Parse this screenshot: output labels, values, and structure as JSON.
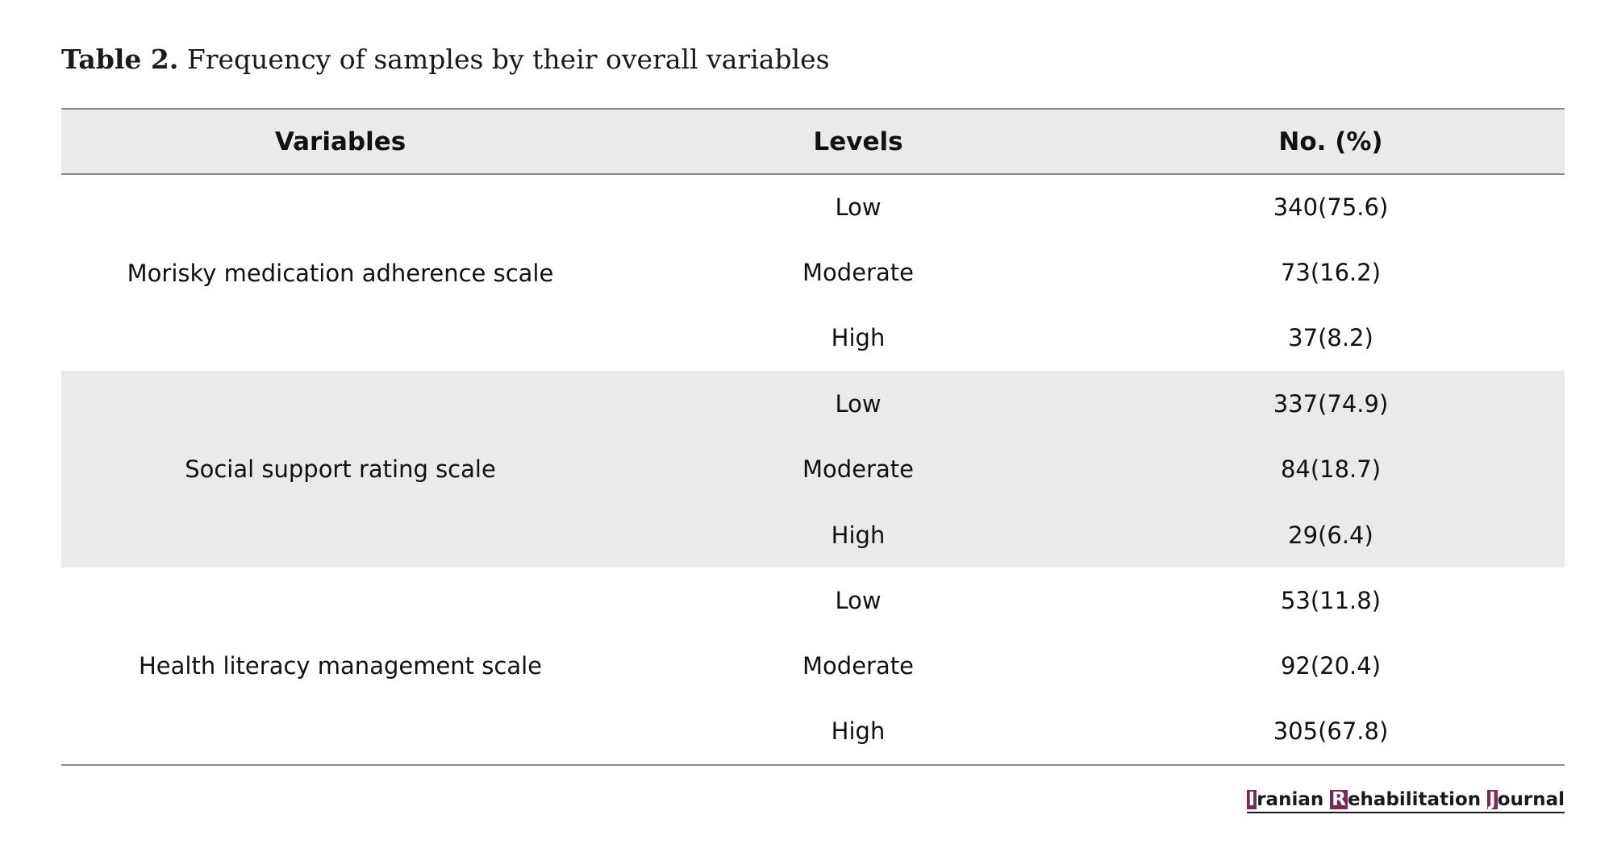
{
  "caption": {
    "label": "Table 2.",
    "text": "Frequency of samples by their overall variables"
  },
  "table": {
    "headers": [
      "Variables",
      "Levels",
      "No. (%)"
    ],
    "groups": [
      {
        "variable": "Morisky medication adherence scale",
        "rows": [
          {
            "level": "Low",
            "value": "340(75.6)"
          },
          {
            "level": "Moderate",
            "value": "73(16.2)"
          },
          {
            "level": "High",
            "value": "37(8.2)"
          }
        ]
      },
      {
        "variable": "Social support rating scale",
        "rows": [
          {
            "level": "Low",
            "value": "337(74.9)"
          },
          {
            "level": "Moderate",
            "value": "84(18.7)"
          },
          {
            "level": "High",
            "value": "29(6.4)"
          }
        ]
      },
      {
        "variable": "Health literacy management scale",
        "rows": [
          {
            "level": "Low",
            "value": "53(11.8)"
          },
          {
            "level": "Moderate",
            "value": "92(20.4)"
          },
          {
            "level": "High",
            "value": "305(67.8)"
          }
        ]
      }
    ]
  },
  "brand": {
    "i_initial": "I",
    "i_rest": "ranian ",
    "r_initial": "R",
    "r_rest": "ehabilitation ",
    "j_initial": "J",
    "j_rest": "ournal",
    "accent_color": "#7a2a55"
  },
  "colors": {
    "header_bg": "#eaeaea",
    "shaded_group_bg": "#eaeaea",
    "rule": "#8a8a8a"
  }
}
